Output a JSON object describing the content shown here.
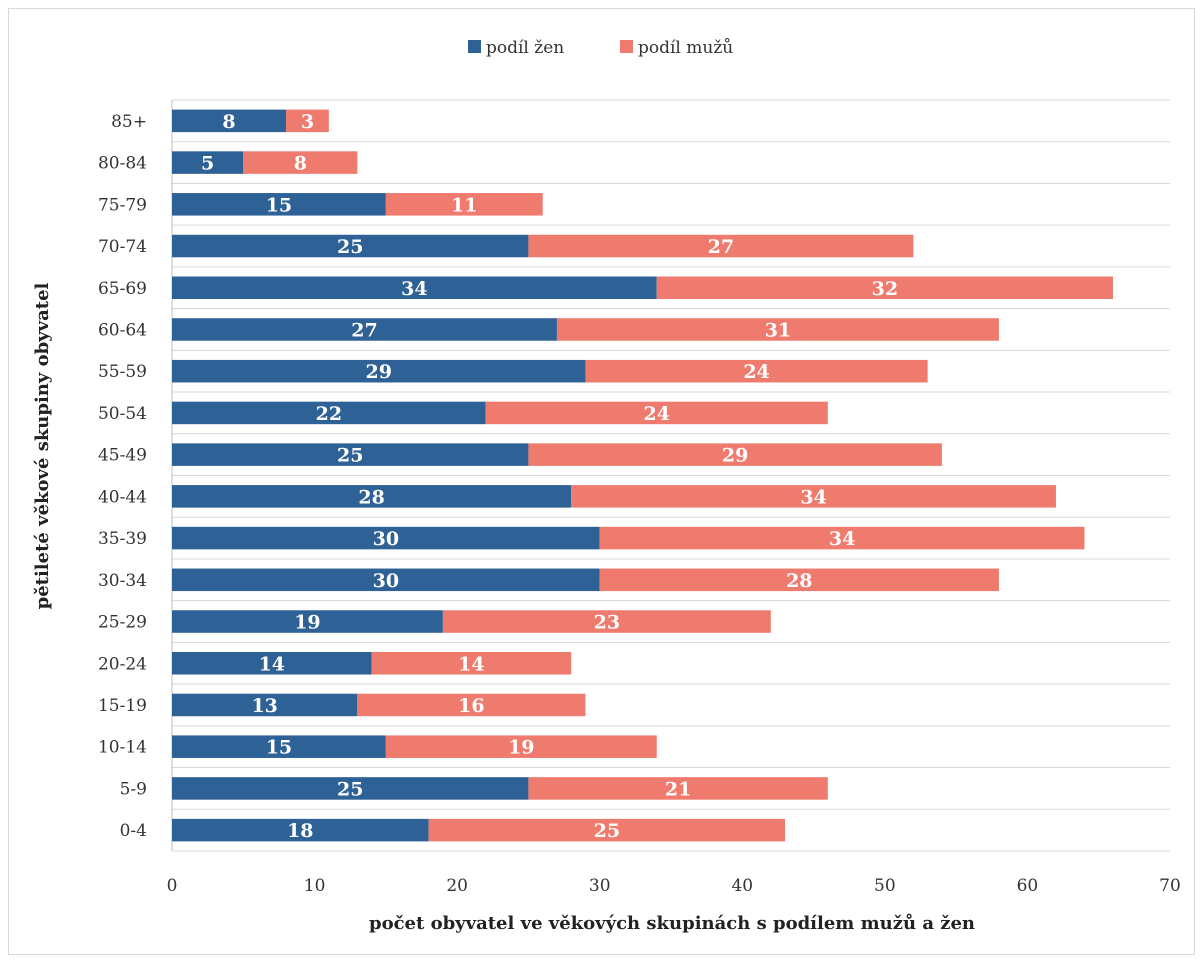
{
  "chart_data": {
    "type": "bar",
    "orientation": "horizontal",
    "stacked": true,
    "title": "",
    "xlabel": "počet obyvatel ve věkových skupinách s podílem mužů a žen",
    "ylabel": "pětileté věkové skupiny obyvatel",
    "xlim": [
      0,
      70
    ],
    "x_ticks": [
      "0",
      "10",
      "20",
      "30",
      "40",
      "50",
      "60",
      "70"
    ],
    "grid": true,
    "legend_position": "top",
    "categories": [
      "85+",
      "80-84",
      "75-79",
      "70-74",
      "65-69",
      "60-64",
      "55-59",
      "50-54",
      "45-49",
      "40-44",
      "35-39",
      "30-34",
      "25-29",
      "20-24",
      "15-19",
      "10-14",
      "5-9",
      "0-4"
    ],
    "series": [
      {
        "name": "podíl žen",
        "color": "#2e6196",
        "values": [
          8,
          5,
          15,
          25,
          34,
          27,
          29,
          22,
          25,
          28,
          30,
          30,
          19,
          14,
          13,
          15,
          25,
          18
        ]
      },
      {
        "name": "podíl mužů",
        "color": "#ef7b6f",
        "values": [
          3,
          8,
          11,
          27,
          32,
          31,
          24,
          24,
          29,
          34,
          34,
          28,
          23,
          14,
          16,
          19,
          21,
          25
        ]
      }
    ]
  }
}
